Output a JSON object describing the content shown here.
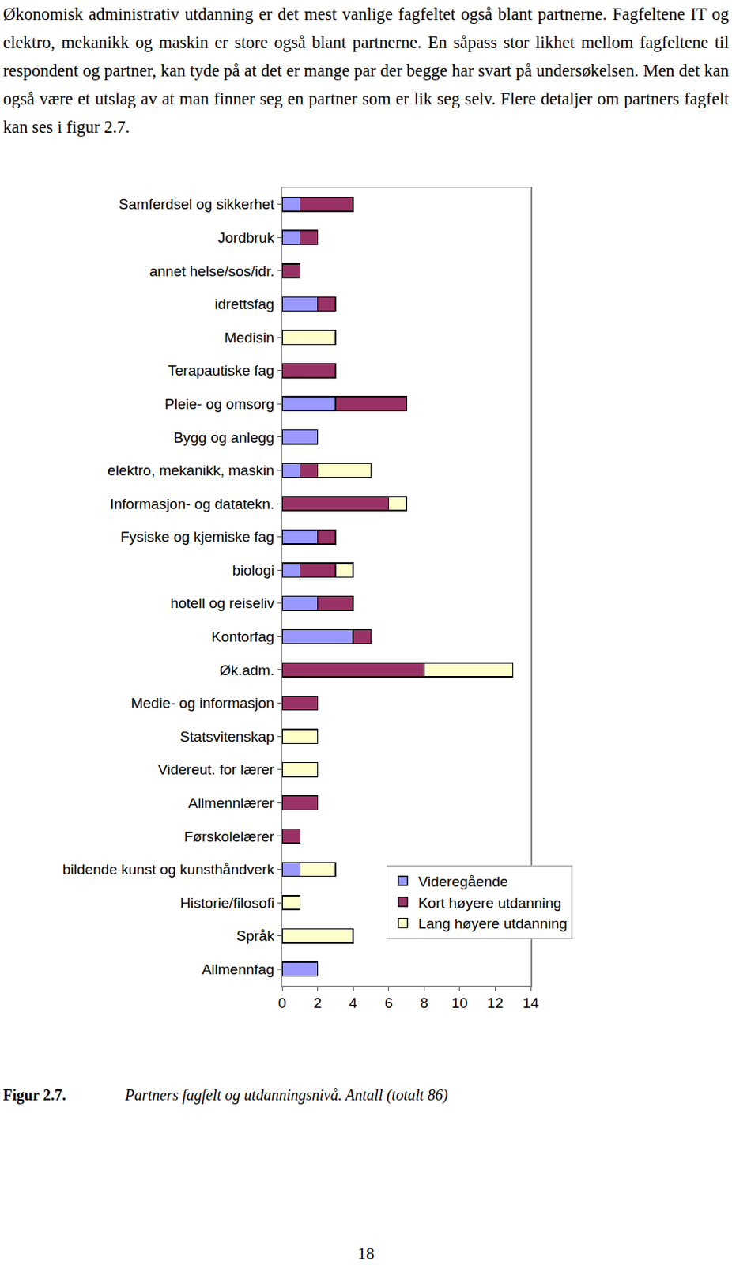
{
  "paragraph": "Økonomisk administrativ utdanning er det mest vanlige fagfeltet også blant partnerne. Fagfeltene IT og elektro, mekanikk og maskin er store også blant partnerne. En såpass stor likhet mellom fagfeltene til respondent og partner, kan tyde på at det er mange par der begge har svart på undersøkelsen. Men det kan også være et utslag av at man finner seg en partner som er lik seg selv. Flere detaljer om partners fagfelt kan ses i figur 2.7.",
  "chart_data": {
    "type": "bar",
    "orientation": "horizontal",
    "stacked": true,
    "categories": [
      "Samferdsel og sikkerhet",
      "Jordbruk",
      "annet helse/sos/idr.",
      "idrettsfag",
      "Medisin",
      "Terapautiske fag",
      "Pleie- og omsorg",
      "Bygg og anlegg",
      "elektro, mekanikk, maskin",
      "Informasjon- og datatekn.",
      "Fysiske og kjemiske fag",
      "biologi",
      "hotell og reiseliv",
      "Kontorfag",
      "Øk.adm.",
      "Medie- og informasjon",
      "Statsvitenskap",
      "Videreut. for lærer",
      "Allmennlærer",
      "Førskolelærer",
      "bildende kunst og kunsthåndverk",
      "Historie/filosofi",
      "Språk",
      "Allmennfag"
    ],
    "series": [
      {
        "name": "Videregående",
        "color": "#9999ff",
        "values": [
          1,
          1,
          0,
          2,
          0,
          0,
          3,
          2,
          1,
          0,
          2,
          1,
          2,
          4,
          0,
          0,
          0,
          0,
          0,
          0,
          1,
          0,
          0,
          2
        ]
      },
      {
        "name": "Kort høyere utdanning",
        "color": "#993366",
        "values": [
          3,
          1,
          1,
          1,
          0,
          3,
          4,
          0,
          1,
          6,
          1,
          2,
          2,
          1,
          8,
          2,
          0,
          0,
          2,
          1,
          0,
          0,
          0,
          0
        ]
      },
      {
        "name": "Lang høyere utdanning",
        "color": "#ffffcc",
        "values": [
          0,
          0,
          0,
          0,
          3,
          0,
          0,
          0,
          3,
          1,
          0,
          1,
          0,
          0,
          5,
          0,
          2,
          2,
          0,
          0,
          2,
          1,
          4,
          0
        ]
      }
    ],
    "xlim": [
      0,
      14
    ],
    "xticks": [
      0,
      2,
      4,
      6,
      8,
      10,
      12,
      14
    ],
    "grid": false,
    "legend": "lower right"
  },
  "caption": {
    "label": "Figur 2.7.",
    "text": "Partners fagfelt og utdanningsnivå. Antall (totalt 86)"
  },
  "page_number": "18"
}
